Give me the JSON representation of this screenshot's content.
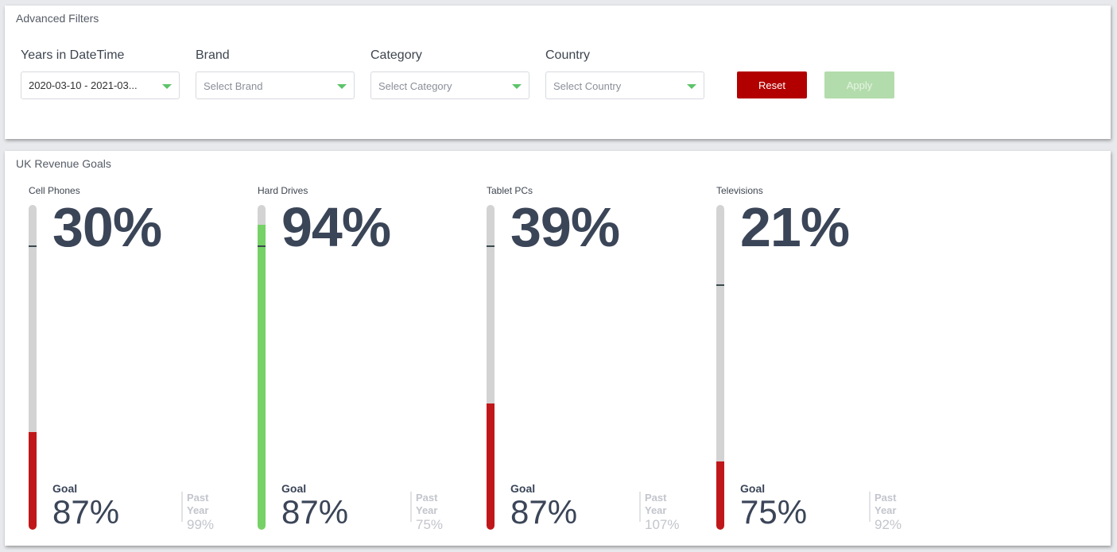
{
  "filters": {
    "title": "Advanced Filters",
    "fields": [
      {
        "label": "Years in DateTime",
        "value": "2020-03-10 - 2021-03...",
        "placeholder": ""
      },
      {
        "label": "Brand",
        "value": "",
        "placeholder": "Select Brand"
      },
      {
        "label": "Category",
        "value": "",
        "placeholder": "Select Category"
      },
      {
        "label": "Country",
        "value": "",
        "placeholder": "Select Country"
      }
    ],
    "reset_label": "Reset",
    "apply_label": "Apply"
  },
  "goals": {
    "title": "UK Revenue Goals",
    "kpis": [
      {
        "name": "Cell Phones",
        "value": "30%",
        "value_num": 30,
        "goal_label": "Goal",
        "goal": "87%",
        "goal_num": 87,
        "past_label": "Past Year",
        "past": "99%",
        "color": "#c0181a"
      },
      {
        "name": "Hard Drives",
        "value": "94%",
        "value_num": 94,
        "goal_label": "Goal",
        "goal": "87%",
        "goal_num": 87,
        "past_label": "Past Year",
        "past": "75%",
        "color": "#76d266"
      },
      {
        "name": "Tablet PCs",
        "value": "39%",
        "value_num": 39,
        "goal_label": "Goal",
        "goal": "87%",
        "goal_num": 87,
        "past_label": "Past Year",
        "past": "107%",
        "color": "#c0181a"
      },
      {
        "name": "Televisions",
        "value": "21%",
        "value_num": 21,
        "goal_label": "Goal",
        "goal": "75%",
        "goal_num": 75,
        "past_label": "Past Year",
        "past": "92%",
        "color": "#c0181a"
      }
    ]
  },
  "colors": {
    "accent_red": "#b20000",
    "accent_green": "#5cc46a",
    "bar_bg": "#d3d3d3",
    "text": "#3b4558"
  }
}
